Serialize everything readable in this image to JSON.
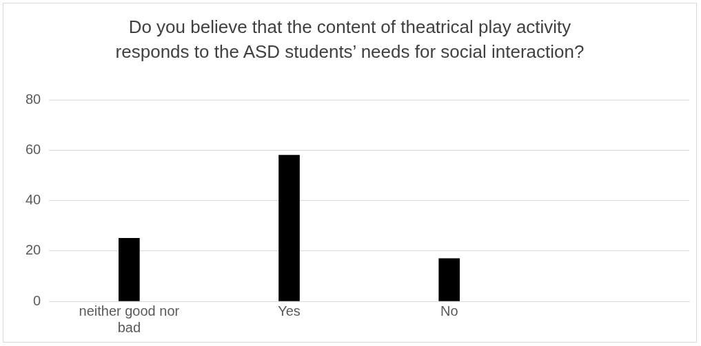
{
  "chart_data": {
    "type": "bar",
    "title": "Do you believe that the content of theatrical play activity responds to the ASD students’ needs for social interaction?",
    "categories": [
      "neither good nor bad",
      "Yes",
      "No",
      null
    ],
    "values": [
      25,
      58,
      17,
      null
    ],
    "color": "#000000",
    "ylim": [
      0,
      80
    ],
    "yticks": [
      0,
      20,
      40,
      60,
      80
    ],
    "grid": "y"
  }
}
